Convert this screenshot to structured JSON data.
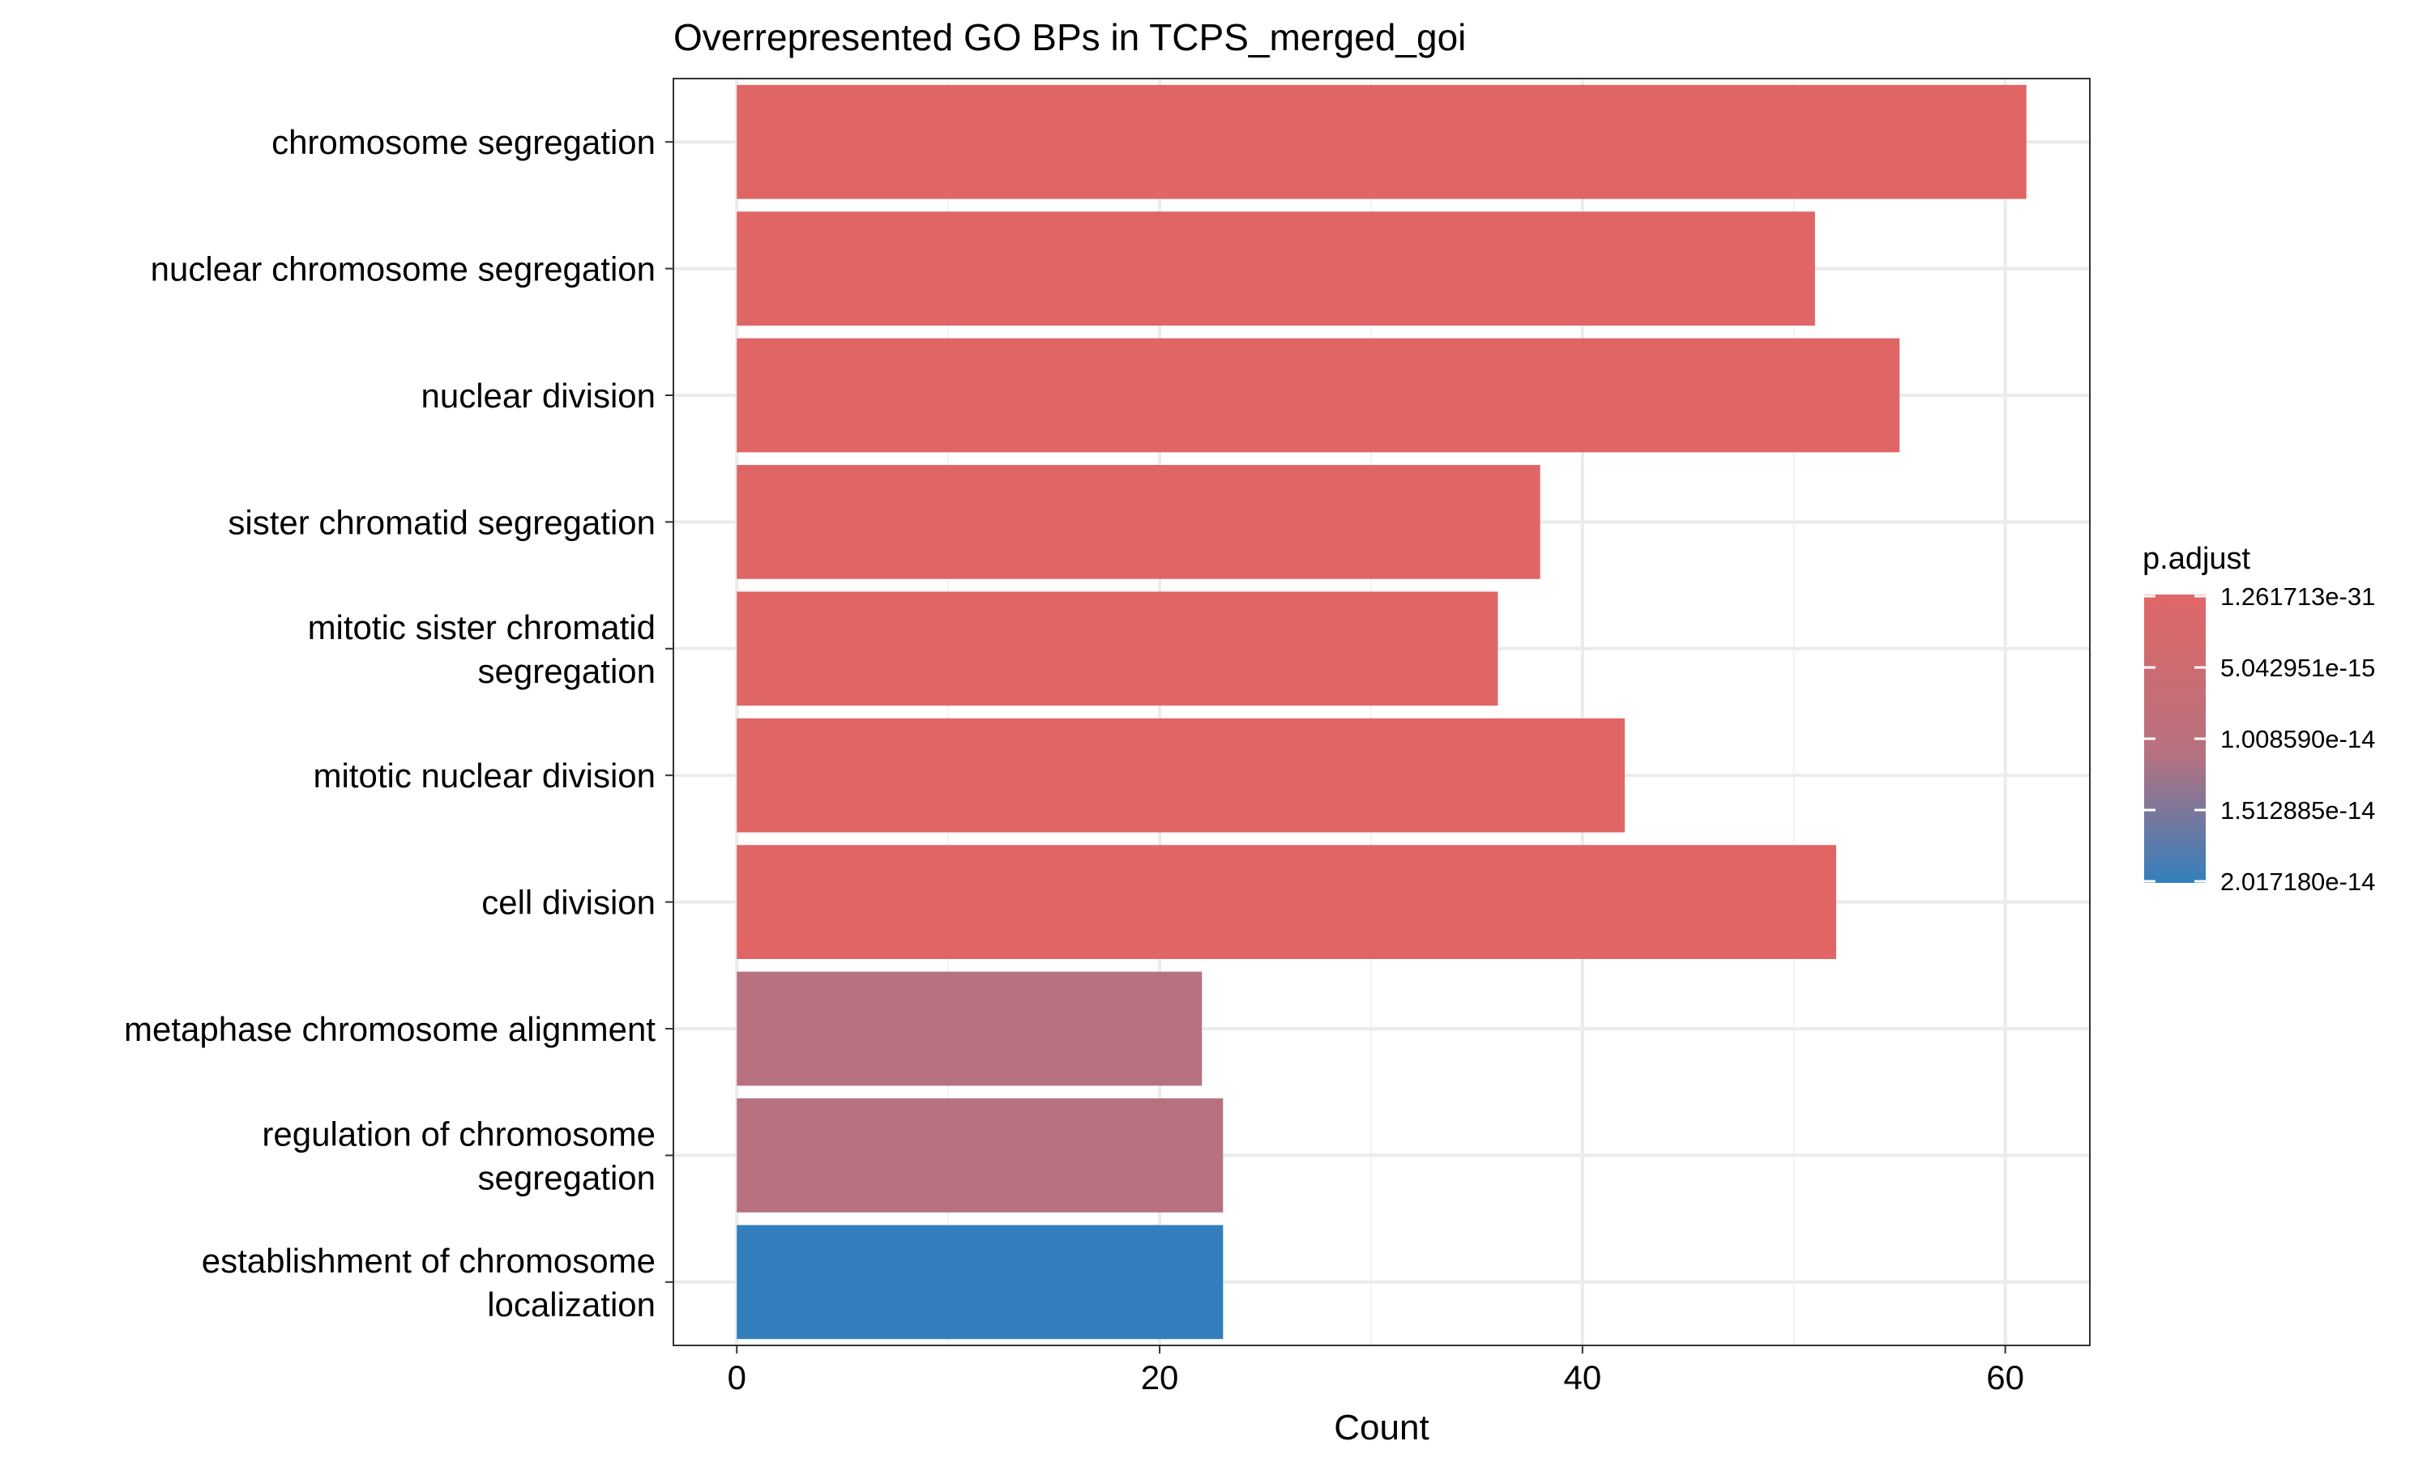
{
  "chart_data": {
    "type": "bar",
    "orientation": "horizontal",
    "title": "Overrepresented GO BPs in TCPS_merged_goi",
    "xlabel": "Count",
    "ylabel": "",
    "xlim": [
      -3,
      64
    ],
    "x_ticks": [
      0,
      20,
      40,
      60
    ],
    "grid": true,
    "categories": [
      "chromosome segregation",
      "nuclear chromosome segregation",
      "nuclear division",
      "sister chromatid segregation",
      "mitotic sister chromatid segregation",
      "mitotic nuclear division",
      "cell division",
      "metaphase chromosome alignment",
      "regulation of chromosome segregation",
      "establishment of chromosome localization"
    ],
    "category_lines": [
      [
        "chromosome segregation"
      ],
      [
        "nuclear chromosome segregation"
      ],
      [
        "nuclear division"
      ],
      [
        "sister chromatid segregation"
      ],
      [
        "mitotic sister chromatid",
        "segregation"
      ],
      [
        "mitotic nuclear division"
      ],
      [
        "cell division"
      ],
      [
        "metaphase chromosome alignment"
      ],
      [
        "regulation of chromosome",
        "segregation"
      ],
      [
        "establishment of chromosome",
        "localization"
      ]
    ],
    "values": [
      61,
      51,
      55,
      38,
      36,
      42,
      52,
      22,
      23,
      23
    ],
    "bar_colors": [
      "#e06666",
      "#e06666",
      "#e06666",
      "#e06666",
      "#e06666",
      "#e06666",
      "#e06666",
      "#b7717f",
      "#b7717f",
      "#337fbd"
    ],
    "legend": {
      "title": "p.adjust",
      "placement": "right",
      "labels": [
        "1.261713e-31",
        "5.042951e-15",
        "1.008590e-14",
        "1.512885e-14",
        "2.017180e-14"
      ],
      "color_low": "#e06666",
      "color_high": "#337fbd"
    }
  }
}
